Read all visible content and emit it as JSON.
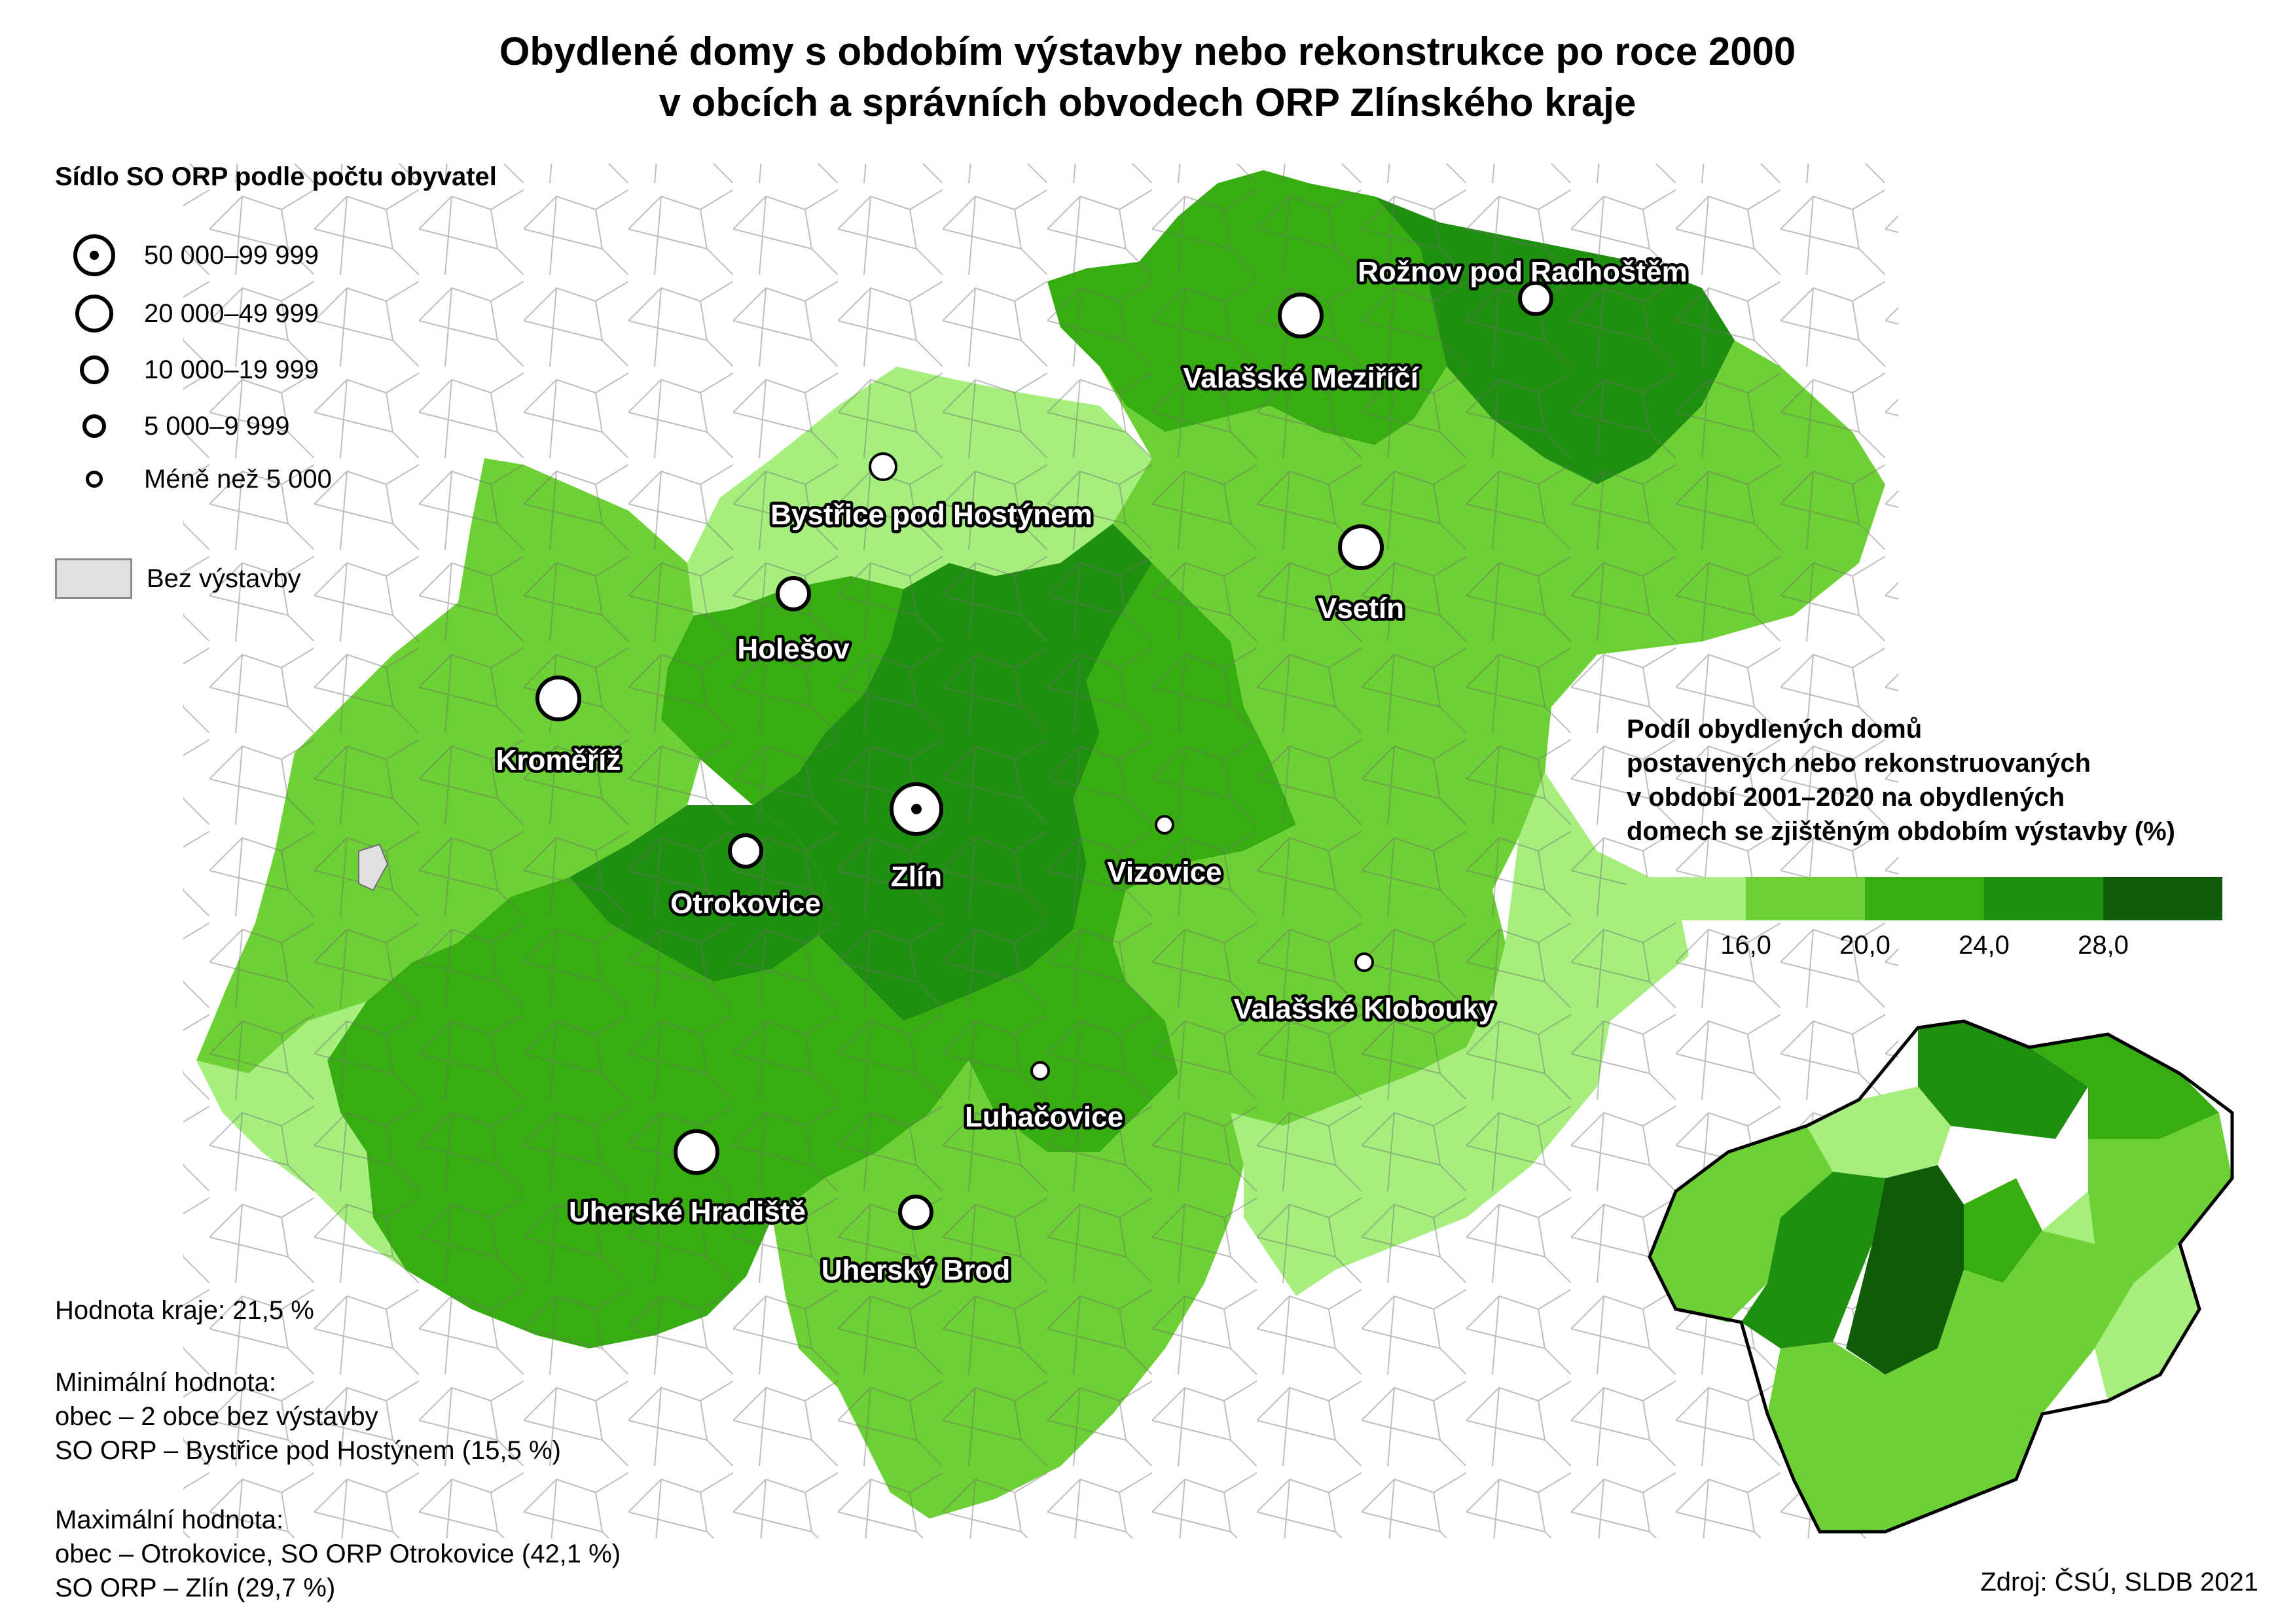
{
  "title": {
    "line1": "Obydlené domy s obdobím výstavby nebo rekonstrukce po roce 2000",
    "line2": "v obcích a správních obvodech ORP Zlínského kraje"
  },
  "symbol_legend": {
    "title": "Sídlo SO ORP podle počtu obyvatel",
    "items": [
      {
        "label": "50 000–99 999",
        "marker": "large-circle-with-dot-icon"
      },
      {
        "label": "20 000–49 999",
        "marker": "large-circle-icon"
      },
      {
        "label": "10 000–19 999",
        "marker": "medium-circle-icon"
      },
      {
        "label": "5 000–9 999",
        "marker": "small-circle-icon"
      },
      {
        "label": "Méně než 5 000",
        "marker": "tiny-circle-icon"
      }
    ],
    "no_data_label": "Bez výstavby",
    "no_data_color": "#e0e0e0"
  },
  "choropleth_legend": {
    "title_lines": [
      "Podíl obydlených domů",
      "postavených nebo rekonstruovaných",
      "v období 2001–2020 na obydlených",
      "domech se zjištěným obdobím výstavby (%)"
    ],
    "colors": [
      "#a6ef7e",
      "#6dd034",
      "#37ad11",
      "#1f8f10",
      "#0f5c09"
    ],
    "breaks": [
      "16,0",
      "20,0",
      "24,0",
      "28,0"
    ]
  },
  "cities": [
    {
      "name": "Zlín",
      "category": "50 000–99 999"
    },
    {
      "name": "Kroměříž",
      "category": "20 000–49 999"
    },
    {
      "name": "Uherské Hradiště",
      "category": "20 000–49 999"
    },
    {
      "name": "Vsetín",
      "category": "20 000–49 999"
    },
    {
      "name": "Valašské Meziříčí",
      "category": "20 000–49 999"
    },
    {
      "name": "Otrokovice",
      "category": "10 000–19 999"
    },
    {
      "name": "Rožnov pod Radhoštěm",
      "category": "10 000–19 999"
    },
    {
      "name": "Uherský Brod",
      "category": "10 000–19 999"
    },
    {
      "name": "Holešov",
      "category": "10 000–19 999"
    },
    {
      "name": "Bystřice pod Hostýnem",
      "category": "5 000–9 999"
    },
    {
      "name": "Vizovice",
      "category": "Méně než 5 000"
    },
    {
      "name": "Valašské Klobouky",
      "category": "Méně než 5 000"
    },
    {
      "name": "Luhačovice",
      "category": "Méně než 5 000"
    }
  ],
  "stats": {
    "region_value": "Hodnota kraje: 21,5 %",
    "min_heading": "Minimální hodnota:",
    "min_municipality": "obec – 2 obce bez výstavby",
    "min_orp": "SO ORP – Bystřice pod Hostýnem (15,5 %)",
    "max_heading": "Maximální hodnota:",
    "max_municipality": "obec – Otrokovice, SO ORP Otrokovice (42,1 %)",
    "max_orp": "SO ORP – Zlín (29,7 %)"
  },
  "source": "Zdroj: ČSÚ, SLDB 2021"
}
